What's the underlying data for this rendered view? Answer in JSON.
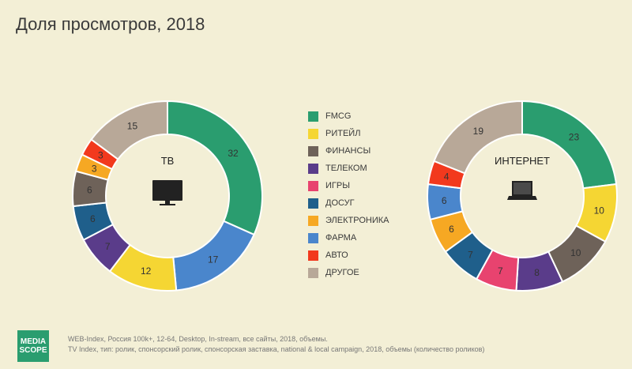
{
  "title": "Доля просмотров, 2018",
  "colors": {
    "fmcg": "#2a9d6f",
    "retail": "#f5d633",
    "finance": "#6e6259",
    "telecom": "#5a3c8a",
    "games": "#e8436f",
    "leisure": "#1f5f8b",
    "electronics": "#f6a823",
    "pharma": "#4a86cc",
    "auto": "#f2391d",
    "other": "#b8a898"
  },
  "legend": [
    {
      "label": "FMCG",
      "color": "#2a9d6f"
    },
    {
      "label": "РИТЕЙЛ",
      "color": "#f5d633"
    },
    {
      "label": "ФИНАНСЫ",
      "color": "#6e6259"
    },
    {
      "label": "ТЕЛЕКОМ",
      "color": "#5a3c8a"
    },
    {
      "label": "ИГРЫ",
      "color": "#e8436f"
    },
    {
      "label": "ДОСУГ",
      "color": "#1f5f8b"
    },
    {
      "label": "ЭЛЕКТРОНИКА",
      "color": "#f6a823"
    },
    {
      "label": "ФАРМА",
      "color": "#4a86cc"
    },
    {
      "label": "АВТО",
      "color": "#f2391d"
    },
    {
      "label": "ДРУГОЕ",
      "color": "#b8a898"
    }
  ],
  "chart_data": [
    {
      "type": "pie",
      "title": "ТВ",
      "icon": "tv-icon",
      "series": [
        {
          "label": "FMCG",
          "value": 32,
          "color": "#2a9d6f"
        },
        {
          "label": "ФАРМА",
          "value": 17,
          "color": "#4a86cc"
        },
        {
          "label": "РИТЕЙЛ",
          "value": 12,
          "color": "#f5d633"
        },
        {
          "label": "ТЕЛЕКОМ",
          "value": 7,
          "color": "#5a3c8a"
        },
        {
          "label": "ДОСУГ",
          "value": 6,
          "color": "#1f5f8b"
        },
        {
          "label": "ФИНАНСЫ",
          "value": 6,
          "color": "#6e6259"
        },
        {
          "label": "ЭЛЕКТРОНИКА",
          "value": 3,
          "color": "#f6a823"
        },
        {
          "label": "АВТО",
          "value": 3,
          "color": "#f2391d"
        },
        {
          "label": "ДРУГОЕ",
          "value": 15,
          "color": "#b8a898"
        }
      ]
    },
    {
      "type": "pie",
      "title": "ИНТЕРНЕТ",
      "icon": "laptop-icon",
      "series": [
        {
          "label": "FMCG",
          "value": 23,
          "color": "#2a9d6f"
        },
        {
          "label": "РИТЕЙЛ",
          "value": 10,
          "color": "#f5d633"
        },
        {
          "label": "ФИНАНСЫ",
          "value": 10,
          "color": "#6e6259"
        },
        {
          "label": "ТЕЛЕКОМ",
          "value": 8,
          "color": "#5a3c8a"
        },
        {
          "label": "ИГРЫ",
          "value": 7,
          "color": "#e8436f"
        },
        {
          "label": "ДОСУГ",
          "value": 7,
          "color": "#1f5f8b"
        },
        {
          "label": "ЭЛЕКТРОНИКА",
          "value": 6,
          "color": "#f6a823"
        },
        {
          "label": "ФАРМА",
          "value": 6,
          "color": "#4a86cc"
        },
        {
          "label": "АВТО",
          "value": 4,
          "color": "#f2391d"
        },
        {
          "label": "ДРУГОЕ",
          "value": 19,
          "color": "#b8a898"
        }
      ]
    }
  ],
  "logo": {
    "line1": "MEDIA",
    "line2": "SCOPE"
  },
  "notes": [
    "WEB-Index, Россия 100k+, 12-64, Desktop, In-stream, все сайты, 2018, объемы.",
    "TV Index, тип: ролик, спонсорский ролик, спонсорская заставка, national & local campaign, 2018, объемы (количество роликов)"
  ]
}
